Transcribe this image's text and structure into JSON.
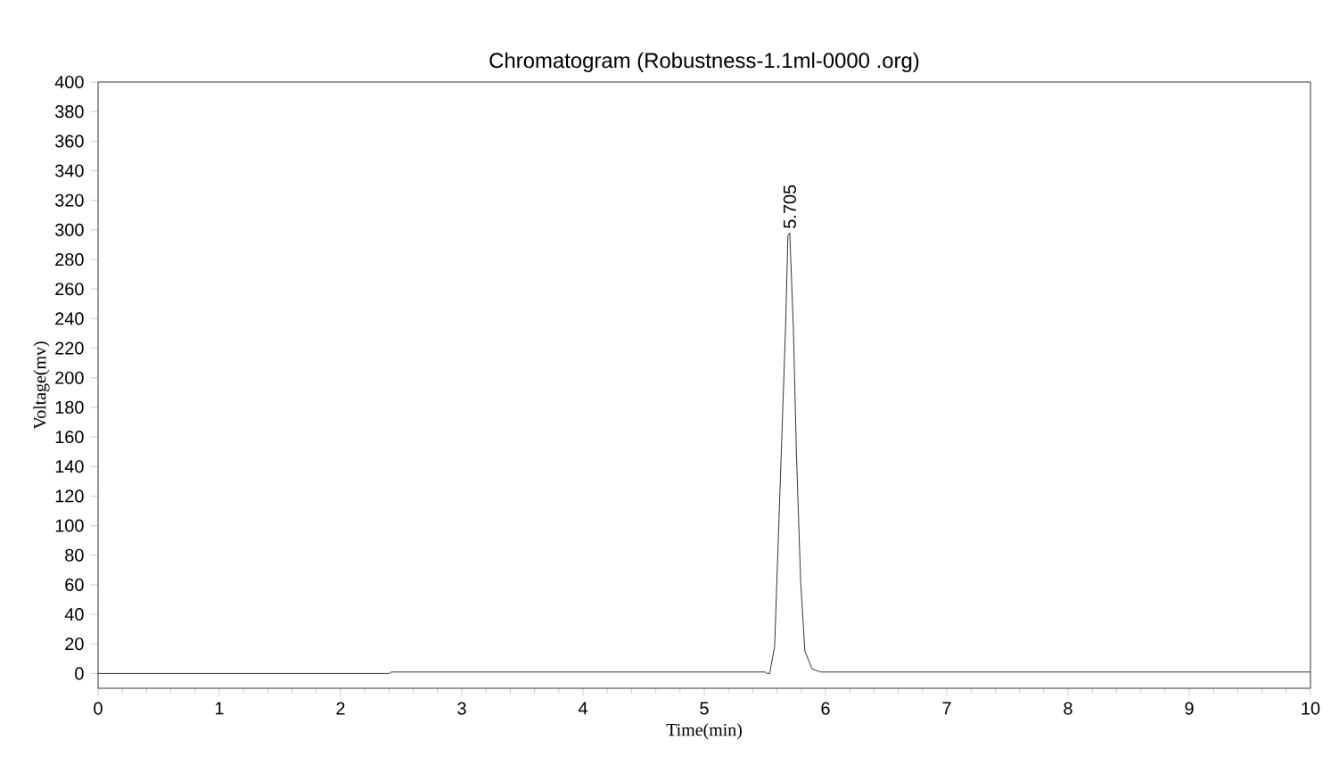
{
  "chart_data": {
    "type": "line",
    "title": "Chromatogram (Robustness-1.1ml-0000 .org)",
    "xlabel": "Time(min)",
    "ylabel": "Voltage(mv)",
    "series": [
      {
        "color": "#000000",
        "x": [
          0,
          2.4,
          2.42,
          5.5,
          5.52,
          5.54,
          5.55,
          5.58,
          5.61,
          5.64,
          5.67,
          5.69,
          5.705,
          5.735,
          5.76,
          5.795,
          5.83,
          5.89,
          5.96,
          7,
          8,
          9,
          9.9,
          10
        ],
        "values": [
          0,
          0,
          1,
          1,
          0,
          0,
          5,
          18,
          89,
          161,
          233,
          296,
          298,
          233,
          149,
          62,
          15,
          3,
          1,
          1,
          1,
          1,
          1,
          1
        ]
      }
    ],
    "annotations": [
      {
        "text": "5.705",
        "x": 5.705,
        "y": 298
      }
    ],
    "xlim": [
      0,
      10
    ],
    "ylim": [
      -10,
      400
    ],
    "xticks": [
      0,
      1,
      2,
      3,
      4,
      5,
      6,
      7,
      8,
      9,
      10
    ],
    "yticks": [
      0,
      20,
      40,
      60,
      80,
      100,
      120,
      140,
      160,
      180,
      200,
      220,
      240,
      260,
      280,
      300,
      320,
      340,
      360,
      380,
      400
    ],
    "line_style": "solid",
    "marker": "none"
  }
}
